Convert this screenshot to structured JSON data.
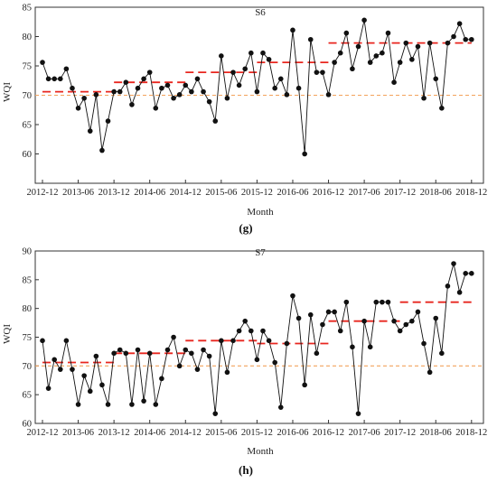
{
  "chart_data": [
    {
      "type": "line",
      "title": "S6",
      "xlabel": "Month",
      "ylabel": "WQI",
      "panel_label": "(g)",
      "xlim": [
        0,
        74
      ],
      "ylim": [
        55,
        85
      ],
      "yticks": [
        60,
        65,
        70,
        75,
        80,
        85
      ],
      "yticklabels": [
        "60",
        "65",
        "70",
        "75",
        "80",
        "85"
      ],
      "xticks": [
        0,
        6,
        12,
        18,
        24,
        30,
        36,
        42,
        48,
        54,
        60,
        66,
        72
      ],
      "xticklabels": [
        "2012-12",
        "2013-06",
        "2013-12",
        "2014-06",
        "2014-12",
        "2015-06",
        "2015-12",
        "2016-06",
        "2016-12",
        "2017-06",
        "2017-12",
        "2018-06",
        "2018-12"
      ],
      "series": [
        {
          "kind": "observed",
          "color": "#111111",
          "x": [
            0,
            1,
            2,
            3,
            4,
            5,
            6,
            7,
            8,
            9,
            10,
            11,
            12,
            13,
            14,
            15,
            16,
            17,
            18,
            19,
            20,
            21,
            22,
            23,
            24,
            25,
            26,
            27,
            28,
            29,
            30,
            31,
            32,
            33,
            34,
            35,
            36,
            37,
            38,
            39,
            40,
            41,
            42,
            43,
            44,
            45,
            46,
            47,
            48,
            49,
            50,
            51,
            52,
            53,
            54,
            55,
            56,
            57,
            58,
            59,
            60,
            61,
            62,
            63,
            64,
            65,
            66,
            67,
            68,
            69,
            70,
            71,
            72
          ],
          "values": [
            75.6,
            72.8,
            72.8,
            72.8,
            74.5,
            71.2,
            67.8,
            69.5,
            63.9,
            70.1,
            60.6,
            65.6,
            70.6,
            70.6,
            72.2,
            68.4,
            71.2,
            72.8,
            73.9,
            67.8,
            71.2,
            71.7,
            69.5,
            70.1,
            71.7,
            70.6,
            72.8,
            70.6,
            68.9,
            65.6,
            76.7,
            69.5,
            73.9,
            71.7,
            74.5,
            77.2,
            70.6,
            77.2,
            76.1,
            71.2,
            72.8,
            70.1,
            81.1,
            71.2,
            60.0,
            79.5,
            73.9,
            73.9,
            70.1,
            75.6,
            77.2,
            80.6,
            74.5,
            78.3,
            82.8,
            75.6,
            76.7,
            77.2,
            80.6,
            72.2,
            75.6,
            78.9,
            76.1,
            78.3,
            69.5,
            78.9,
            72.8,
            67.8,
            78.9,
            80.0,
            82.2,
            79.5,
            79.5
          ]
        },
        {
          "kind": "segment-mean",
          "color": "#e8261f",
          "x": [
            0,
            12
          ],
          "values": [
            70.6,
            70.6
          ]
        },
        {
          "kind": "segment-mean",
          "color": "#e8261f",
          "x": [
            12,
            24
          ],
          "values": [
            72.2,
            72.2
          ]
        },
        {
          "kind": "segment-mean",
          "color": "#e8261f",
          "x": [
            24,
            36
          ],
          "values": [
            73.9,
            73.9
          ]
        },
        {
          "kind": "segment-mean",
          "color": "#e8261f",
          "x": [
            36,
            48
          ],
          "values": [
            75.6,
            75.6
          ]
        },
        {
          "kind": "segment-mean",
          "color": "#e8261f",
          "x": [
            48,
            72
          ],
          "values": [
            78.9,
            78.9
          ]
        },
        {
          "kind": "reference",
          "color": "#f3a35c",
          "x": [
            0,
            74
          ],
          "values": [
            70,
            70
          ]
        }
      ]
    },
    {
      "type": "line",
      "title": "S7",
      "xlabel": "Month",
      "ylabel": "WQI",
      "panel_label": "(h)",
      "xlim": [
        0,
        74
      ],
      "ylim": [
        60,
        90
      ],
      "yticks": [
        60,
        65,
        70,
        75,
        80,
        85,
        90
      ],
      "yticklabels": [
        "60",
        "65",
        "70",
        "75",
        "80",
        "85",
        "90"
      ],
      "xticks": [
        0,
        6,
        12,
        18,
        24,
        30,
        36,
        42,
        48,
        54,
        60,
        66,
        72
      ],
      "xticklabels": [
        "2012-12",
        "2013-06",
        "2013-12",
        "2014-06",
        "2014-12",
        "2015-06",
        "2015-12",
        "2016-06",
        "2016-12",
        "2017-06",
        "2017-12",
        "2018-06",
        "2018-12"
      ],
      "series": [
        {
          "kind": "observed",
          "color": "#111111",
          "x": [
            0,
            1,
            2,
            3,
            4,
            5,
            6,
            7,
            8,
            9,
            10,
            11,
            12,
            13,
            14,
            15,
            16,
            17,
            18,
            19,
            20,
            21,
            22,
            23,
            24,
            25,
            26,
            27,
            28,
            29,
            30,
            31,
            32,
            33,
            34,
            35,
            36,
            37,
            38,
            39,
            40,
            41,
            42,
            43,
            44,
            45,
            46,
            47,
            48,
            49,
            50,
            51,
            52,
            53,
            54,
            55,
            56,
            57,
            58,
            59,
            60,
            61,
            62,
            63,
            64,
            65,
            66,
            67,
            68,
            69,
            70,
            71,
            72
          ],
          "values": [
            74.4,
            66.1,
            71.1,
            69.4,
            74.4,
            69.4,
            63.3,
            68.3,
            65.6,
            71.7,
            66.7,
            63.3,
            72.2,
            72.8,
            72.2,
            63.3,
            72.8,
            63.9,
            72.2,
            63.3,
            67.8,
            72.8,
            75.0,
            70.0,
            72.8,
            72.2,
            69.4,
            72.8,
            71.7,
            61.7,
            74.4,
            68.9,
            74.4,
            76.1,
            77.8,
            76.1,
            71.1,
            76.1,
            74.4,
            70.6,
            62.8,
            73.9,
            82.2,
            78.3,
            66.7,
            78.9,
            72.2,
            77.2,
            79.4,
            79.4,
            76.1,
            81.1,
            73.3,
            61.7,
            77.8,
            73.3,
            81.1,
            81.1,
            81.1,
            77.8,
            76.1,
            77.2,
            77.8,
            79.4,
            73.9,
            68.9,
            78.3,
            72.2,
            83.9,
            87.8,
            82.8,
            86.1,
            86.1
          ]
        },
        {
          "kind": "segment-mean",
          "color": "#e8261f",
          "x": [
            0,
            12
          ],
          "values": [
            70.6,
            70.6
          ]
        },
        {
          "kind": "segment-mean",
          "color": "#e8261f",
          "x": [
            12,
            24
          ],
          "values": [
            72.2,
            72.2
          ]
        },
        {
          "kind": "segment-mean",
          "color": "#e8261f",
          "x": [
            24,
            36
          ],
          "values": [
            74.4,
            74.4
          ]
        },
        {
          "kind": "segment-mean",
          "color": "#e8261f",
          "x": [
            36,
            48
          ],
          "values": [
            73.9,
            73.9
          ]
        },
        {
          "kind": "segment-mean",
          "color": "#e8261f",
          "x": [
            48,
            60
          ],
          "values": [
            77.8,
            77.8
          ]
        },
        {
          "kind": "segment-mean",
          "color": "#e8261f",
          "x": [
            60,
            72
          ],
          "values": [
            81.1,
            81.1
          ]
        },
        {
          "kind": "reference",
          "color": "#f3a35c",
          "x": [
            0,
            74
          ],
          "values": [
            70,
            70
          ]
        }
      ]
    }
  ]
}
